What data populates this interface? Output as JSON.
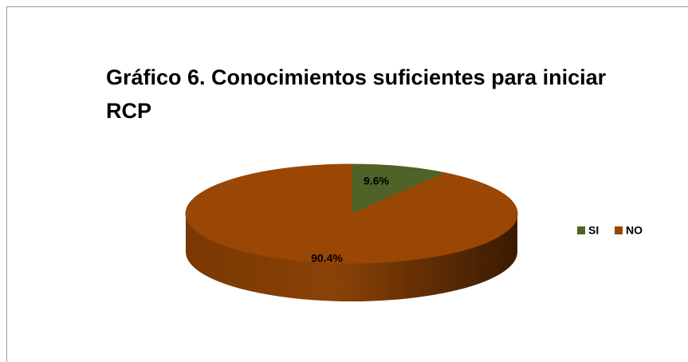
{
  "chart_data": {
    "type": "pie",
    "title": "Gráfico 6.  Conocimientos suficientes para iniciar RCP",
    "categories": [
      "SI",
      "NO"
    ],
    "values": [
      9.6,
      90.4
    ],
    "value_labels": [
      "9.6%",
      "90.4%"
    ],
    "colors": [
      "#4f6228",
      "#9a4705"
    ],
    "legend": "right"
  }
}
